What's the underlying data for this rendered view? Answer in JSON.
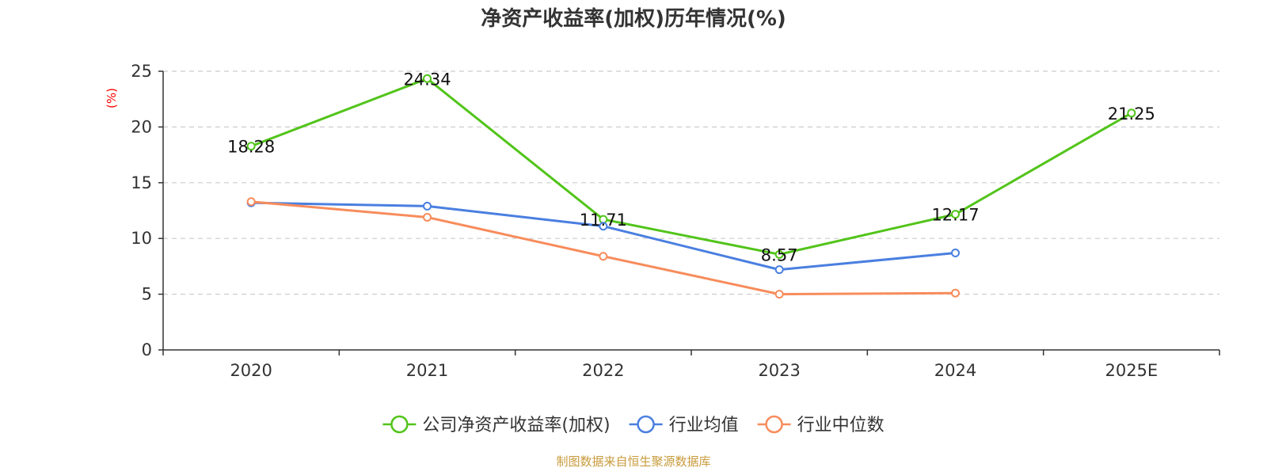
{
  "colors": {
    "company": "#52c41a",
    "industry_avg": "#4a7fe0",
    "industry_median": "#f78c5c",
    "grid": "#cccccc",
    "axis": "#333333",
    "unit": "#ff0000",
    "source": "#c89b3c"
  },
  "chart_data": {
    "type": "line",
    "title": "净资产收益率(加权)历年情况(%)",
    "ylabel": "(%)",
    "xlabel": "",
    "categories": [
      "2020",
      "2021",
      "2022",
      "2023",
      "2024",
      "2025E"
    ],
    "ylim": [
      0,
      25
    ],
    "yticks": [
      0,
      5,
      10,
      15,
      20,
      25
    ],
    "grid": true,
    "legend_position": "bottom-center",
    "series": [
      {
        "name": "公司净资产收益率(加权)",
        "color_key": "company",
        "values": [
          18.28,
          24.34,
          11.71,
          8.57,
          12.17,
          21.25
        ],
        "labels": [
          "18.28",
          "24.34",
          "11.71",
          "8.57",
          "12.17",
          "21.25"
        ],
        "show_labels": true
      },
      {
        "name": "行业均值",
        "color_key": "industry_avg",
        "values": [
          13.2,
          12.9,
          11.1,
          7.2,
          8.7,
          null
        ],
        "show_labels": false
      },
      {
        "name": "行业中位数",
        "color_key": "industry_median",
        "values": [
          13.3,
          11.9,
          8.4,
          5.0,
          5.1,
          null
        ],
        "show_labels": false
      }
    ]
  },
  "footer": {
    "source": "制图数据来自恒生聚源数据库"
  }
}
